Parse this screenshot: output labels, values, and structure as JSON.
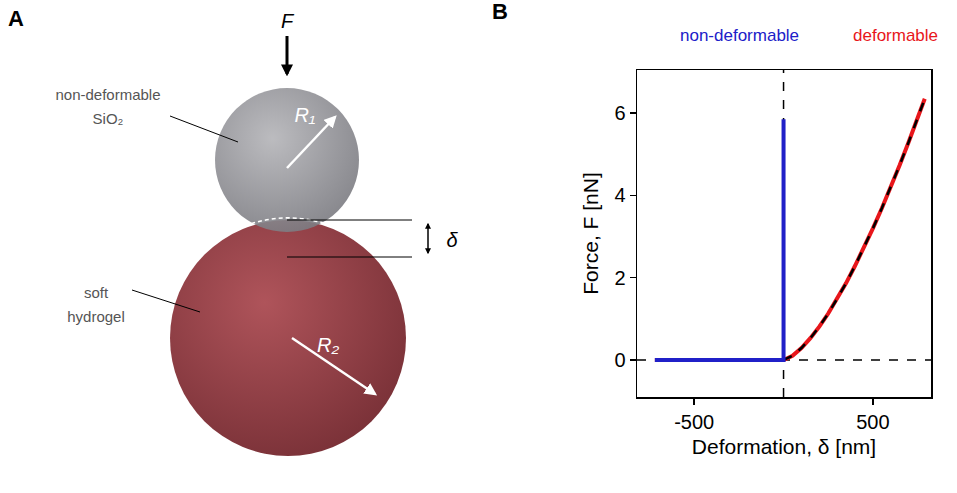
{
  "panel_labels": [
    "A",
    "B"
  ],
  "diagram": {
    "force_label": "F",
    "top_sphere": {
      "label_lines": [
        "non-deformable",
        "SiO₂"
      ],
      "radius_label": "R₁"
    },
    "bottom_sphere": {
      "label_lines": [
        "soft",
        "hydrogel"
      ],
      "radius_label": "R₂"
    },
    "overlap_label": "δ"
  },
  "chart_data": {
    "type": "line",
    "x_label": "Deformation, δ [nm]",
    "y_label": "Force, F [nN]",
    "xlim": [
      -820,
      825
    ],
    "ylim": [
      -0.9,
      7.05
    ],
    "xticks": [
      -500,
      500
    ],
    "yticks": [
      0,
      2,
      4,
      6
    ],
    "grid": false,
    "vlines": [
      0
    ],
    "hlines": [
      0
    ],
    "series": [
      {
        "name": "deformable",
        "color": "#e8161b",
        "line_style": "solid",
        "x": [
          -720,
          -400,
          0,
          50,
          100,
          150,
          200,
          250,
          300,
          350,
          400,
          450,
          500,
          550,
          600,
          650,
          700,
          750,
          790
        ],
        "values": [
          0,
          0,
          0,
          0.1,
          0.29,
          0.53,
          0.81,
          1.13,
          1.49,
          1.87,
          2.29,
          2.73,
          3.2,
          3.69,
          4.2,
          4.74,
          5.3,
          5.87,
          6.35
        ]
      },
      {
        "color": "#000000",
        "line_style": "dashed",
        "x": [
          0,
          50,
          100,
          150,
          200,
          250,
          300,
          350,
          400,
          450,
          500,
          550,
          600,
          650,
          700,
          750,
          790
        ],
        "values": [
          0,
          0.1,
          0.29,
          0.53,
          0.81,
          1.13,
          1.49,
          1.87,
          2.29,
          2.73,
          3.2,
          3.69,
          4.2,
          4.74,
          5.3,
          5.87,
          6.35
        ]
      },
      {
        "name": "non-deformable",
        "color": "#2020c8",
        "line_style": "solid",
        "x": [
          -720,
          -400,
          0,
          0
        ],
        "values": [
          0,
          0,
          0,
          5.85
        ]
      }
    ]
  }
}
